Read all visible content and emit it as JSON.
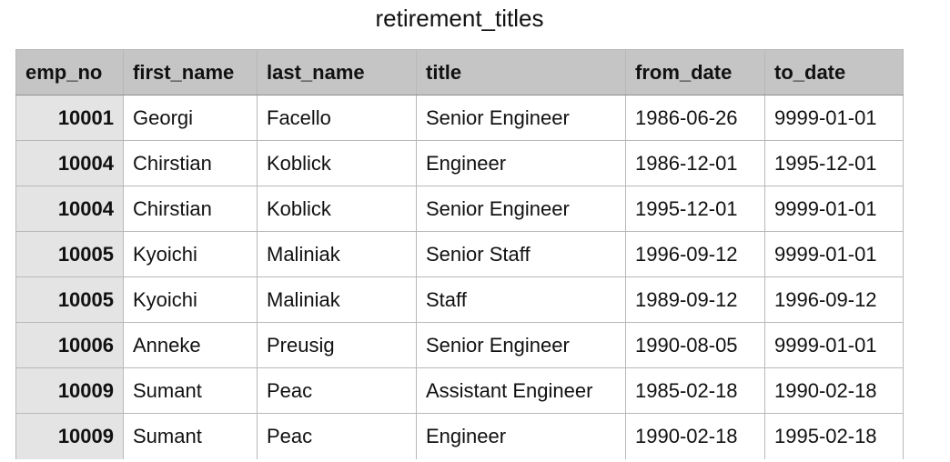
{
  "title": "retirement_titles",
  "table": {
    "columns": [
      "emp_no",
      "first_name",
      "last_name",
      "title",
      "from_date",
      "to_date"
    ],
    "rows": [
      [
        "10001",
        "Georgi",
        "Facello",
        "Senior Engineer",
        "1986-06-26",
        "9999-01-01"
      ],
      [
        "10004",
        "Chirstian",
        "Koblick",
        "Engineer",
        "1986-12-01",
        "1995-12-01"
      ],
      [
        "10004",
        "Chirstian",
        "Koblick",
        "Senior Engineer",
        "1995-12-01",
        "9999-01-01"
      ],
      [
        "10005",
        "Kyoichi",
        "Maliniak",
        "Senior Staff",
        "1996-09-12",
        "9999-01-01"
      ],
      [
        "10005",
        "Kyoichi",
        "Maliniak",
        "Staff",
        "1989-09-12",
        "1996-09-12"
      ],
      [
        "10006",
        "Anneke",
        "Preusig",
        "Senior Engineer",
        "1990-08-05",
        "9999-01-01"
      ],
      [
        "10009",
        "Sumant",
        "Peac",
        "Assistant Engineer",
        "1985-02-18",
        "1990-02-18"
      ],
      [
        "10009",
        "Sumant",
        "Peac",
        "Engineer",
        "1990-02-18",
        "1995-02-18"
      ]
    ]
  }
}
